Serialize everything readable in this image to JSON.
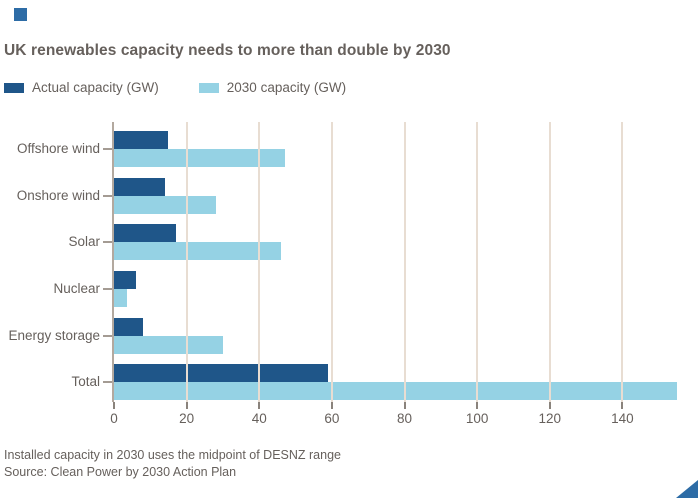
{
  "brand": {
    "corner_square_icon": "brand-corner-square-icon",
    "corner_triangle_icon": "brand-corner-triangle-icon",
    "corner_square_color": "#2d6ca6",
    "corner_triangle_color": "#2d6ca6"
  },
  "title": "UK renewables capacity needs to more than double by 2030",
  "legend": {
    "items": [
      {
        "label": "Actual capacity (GW)",
        "color": "#1f5689"
      },
      {
        "label": "2030 capacity (GW)",
        "color": "#95d2e4"
      }
    ]
  },
  "footnote": "Installed capacity in 2030 uses the midpoint of DESNZ range",
  "source": "Source: Clean Power by 2030 Action Plan",
  "colors": {
    "text": "#66605c",
    "gridline": "#e8ddd2",
    "axis_line": "#b3a99f",
    "tick": "#8a837c"
  },
  "chart_data": {
    "type": "bar",
    "orientation": "horizontal",
    "title": "UK renewables capacity needs to more than double by 2030",
    "categories": [
      "Offshore wind",
      "Onshore wind",
      "Solar",
      "Nuclear",
      "Energy storage",
      "Total"
    ],
    "series": [
      {
        "name": "Actual capacity (GW)",
        "color": "#1f5689",
        "values": [
          15,
          14,
          17,
          6,
          8,
          59
        ]
      },
      {
        "name": "2030 capacity (GW)",
        "color": "#95d2e4",
        "values": [
          47,
          28,
          46,
          3.5,
          30,
          155
        ]
      }
    ],
    "xlabel": "",
    "ylabel": "",
    "xticks": [
      0,
      20,
      40,
      60,
      80,
      100,
      120,
      140
    ],
    "xlim": [
      0,
      160
    ],
    "grid": true,
    "legend_position": "top-left",
    "annotations": []
  }
}
